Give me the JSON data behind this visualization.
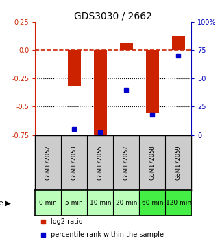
{
  "title": "GDS3030 / 2662",
  "samples": [
    "GSM172052",
    "GSM172053",
    "GSM172055",
    "GSM172057",
    "GSM172058",
    "GSM172059"
  ],
  "time_labels": [
    "0 min",
    "5 min",
    "10 min",
    "20 min",
    "60 min",
    "120 min"
  ],
  "log2_ratio": [
    0.0,
    -0.32,
    -0.78,
    0.07,
    -0.55,
    0.12
  ],
  "percentile_rank": [
    null,
    5,
    2,
    40,
    18,
    70
  ],
  "ylim_left": [
    -0.75,
    0.25
  ],
  "ylim_right": [
    0,
    100
  ],
  "yticks_left": [
    0.25,
    0.0,
    -0.25,
    -0.5,
    -0.75
  ],
  "yticks_right": [
    100,
    75,
    50,
    25,
    0
  ],
  "hlines": [
    -0.25,
    -0.5
  ],
  "bar_color": "#cc2200",
  "dot_color": "#0000cc",
  "dashed_color": "#cc2200",
  "grid_color": "#000000",
  "sample_bg": "#cccccc",
  "time_bg_light": "#bbffbb",
  "time_bg_dark": "#44ee44",
  "title_color": "#000000",
  "left_axis_color": "#cc2200",
  "right_axis_color": "#0000bb",
  "bar_width": 0.5,
  "dot_markersize": 4,
  "title_fontsize": 10,
  "tick_fontsize": 7,
  "sample_fontsize": 6,
  "time_fontsize": 6.5,
  "legend_fontsize": 7
}
